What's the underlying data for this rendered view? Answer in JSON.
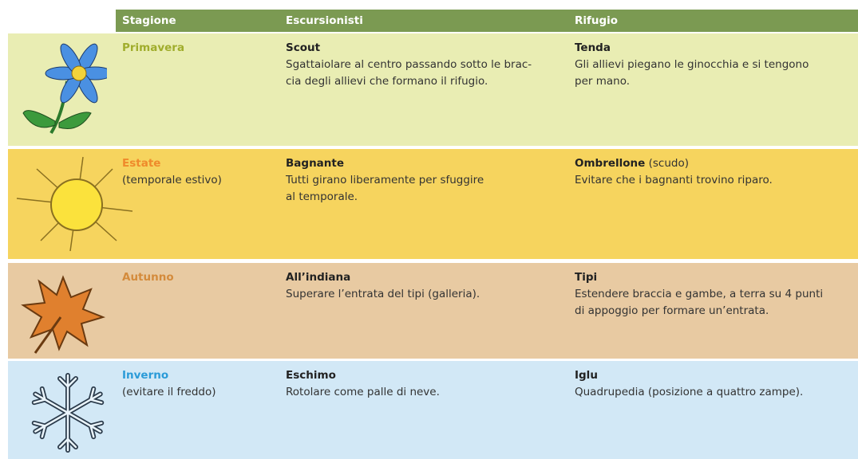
{
  "table": {
    "columns": [
      "Stagione",
      "Escursionisti",
      "Rifugio"
    ],
    "rows": [
      {
        "season": "Primavera",
        "hikers_title": "Scout",
        "hikers_lines": [
          "Sgattaiolare al centro passando sotto le brac-",
          "cia degli allievi che formano il rifugio."
        ],
        "shelter_title": "Tenda",
        "shelter_lines": [
          "Gli allievi piegano le ginocchia e si tengono",
          "per mano."
        ]
      },
      {
        "season": "Estate",
        "season_note": "(temporale estivo)",
        "hikers_title": "Bagnante",
        "hikers_lines": [
          "Tutti girano liberamente per sfuggire",
          "al temporale."
        ],
        "shelter_title": "Ombrellone",
        "shelter_note": "(scudo)",
        "shelter_lines": [
          "Evitare che i bagnanti trovino riparo."
        ]
      },
      {
        "season": "Autunno",
        "hikers_title": "All’indiana",
        "hikers_lines": [
          "Superare l’entrata del tipi (galleria)."
        ],
        "shelter_title": "Tipi",
        "shelter_lines": [
          "Estendere braccia e gambe, a terra su 4 punti",
          "di appoggio per formare un’entrata."
        ]
      },
      {
        "season": "Inverno",
        "season_note": "(evitare il freddo)",
        "hikers_title": "Eschimo",
        "hikers_lines": [
          "Rotolare come palle di neve."
        ],
        "shelter_title": "Iglu",
        "shelter_lines": [
          "Quadrupedia (posizione a quattro zampe)."
        ]
      }
    ]
  }
}
